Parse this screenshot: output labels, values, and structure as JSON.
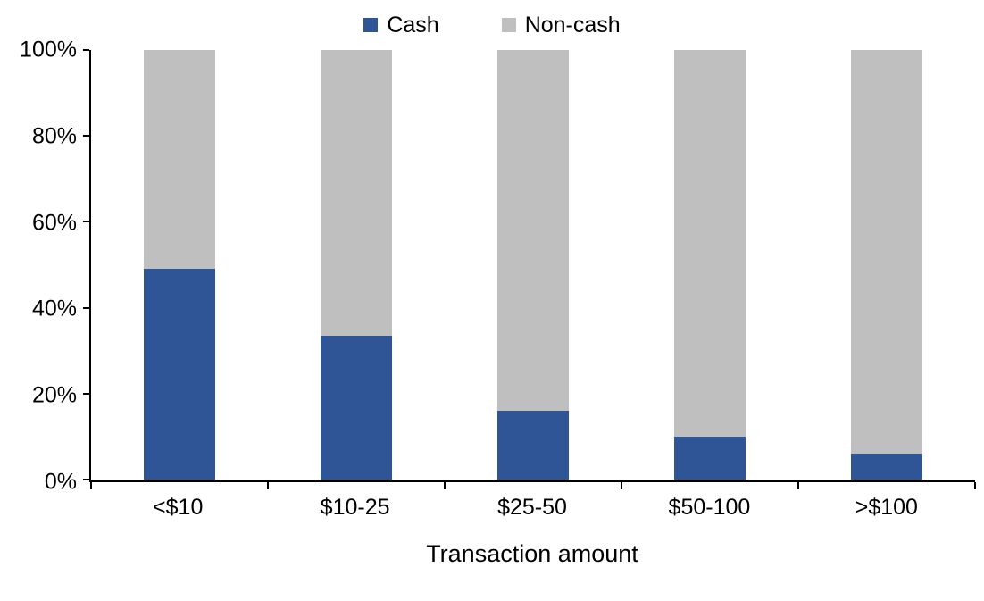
{
  "chart_data": {
    "type": "bar",
    "subtype": "stacked-100-percent",
    "title": "",
    "xlabel": "Transaction amount",
    "ylabel": "",
    "categories": [
      "<$10",
      "$10-25",
      "$25-50",
      "$50-100",
      ">$100"
    ],
    "series": [
      {
        "name": "Cash",
        "color": "#2F5597",
        "values": [
          49,
          33.5,
          16,
          10,
          6
        ]
      },
      {
        "name": "Non-cash",
        "color": "#BFBFBF",
        "values": [
          51,
          66.5,
          84,
          90,
          94
        ]
      }
    ],
    "ylim": [
      0,
      100
    ],
    "yticks": [
      "0%",
      "20%",
      "40%",
      "60%",
      "80%",
      "100%"
    ],
    "grid": false,
    "legend_position": "top-center"
  }
}
